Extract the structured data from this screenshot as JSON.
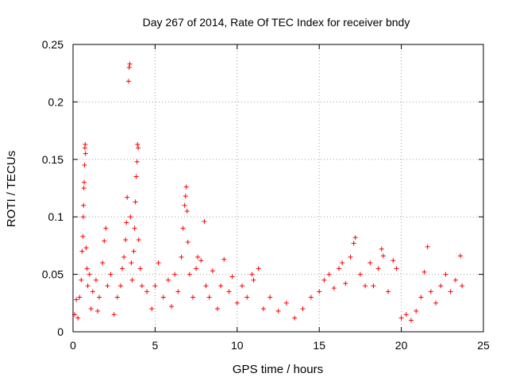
{
  "chart_data": {
    "type": "scatter",
    "title": "Day 267 of 2014, Rate Of TEC Index for receiver bndy",
    "xlabel": "GPS time / hours",
    "ylabel": "ROTI / TECUs",
    "xlim": [
      0,
      25
    ],
    "ylim": [
      0,
      0.25
    ],
    "x_ticks": [
      0,
      5,
      10,
      15,
      20,
      25
    ],
    "x_tick_labels": [
      "0",
      "5",
      "10",
      "15",
      "20",
      "25"
    ],
    "y_ticks": [
      0,
      0.05,
      0.1,
      0.15,
      0.2,
      0.25
    ],
    "y_tick_labels": [
      "0",
      "0.05",
      "0.1",
      "0.15",
      "0.2",
      "0.25"
    ],
    "grid": true,
    "marker": "plus",
    "marker_color": "#ff0000",
    "series": [
      {
        "name": "ROTI",
        "points": [
          [
            0.1,
            0.015
          ],
          [
            0.2,
            0.028
          ],
          [
            0.3,
            0.012
          ],
          [
            0.4,
            0.03
          ],
          [
            0.5,
            0.045
          ],
          [
            0.55,
            0.07
          ],
          [
            0.6,
            0.083
          ],
          [
            0.62,
            0.1
          ],
          [
            0.64,
            0.11
          ],
          [
            0.66,
            0.125
          ],
          [
            0.68,
            0.13
          ],
          [
            0.7,
            0.145
          ],
          [
            0.72,
            0.16
          ],
          [
            0.74,
            0.163
          ],
          [
            0.76,
            0.155
          ],
          [
            0.8,
            0.073
          ],
          [
            0.85,
            0.055
          ],
          [
            0.9,
            0.04
          ],
          [
            1.0,
            0.05
          ],
          [
            1.1,
            0.02
          ],
          [
            1.2,
            0.035
          ],
          [
            1.4,
            0.045
          ],
          [
            1.5,
            0.018
          ],
          [
            1.6,
            0.03
          ],
          [
            1.8,
            0.06
          ],
          [
            1.9,
            0.079
          ],
          [
            2.0,
            0.09
          ],
          [
            2.1,
            0.04
          ],
          [
            2.3,
            0.05
          ],
          [
            2.5,
            0.015
          ],
          [
            2.7,
            0.03
          ],
          [
            2.9,
            0.04
          ],
          [
            3.0,
            0.055
          ],
          [
            3.1,
            0.065
          ],
          [
            3.2,
            0.08
          ],
          [
            3.25,
            0.095
          ],
          [
            3.3,
            0.117
          ],
          [
            3.38,
            0.218
          ],
          [
            3.42,
            0.23
          ],
          [
            3.46,
            0.233
          ],
          [
            3.5,
            0.1
          ],
          [
            3.55,
            0.06
          ],
          [
            3.6,
            0.045
          ],
          [
            3.7,
            0.07
          ],
          [
            3.75,
            0.09
          ],
          [
            3.8,
            0.113
          ],
          [
            3.85,
            0.135
          ],
          [
            3.9,
            0.148
          ],
          [
            3.93,
            0.163
          ],
          [
            3.97,
            0.16
          ],
          [
            4.0,
            0.08
          ],
          [
            4.1,
            0.055
          ],
          [
            4.2,
            0.04
          ],
          [
            4.5,
            0.035
          ],
          [
            4.8,
            0.02
          ],
          [
            5.0,
            0.04
          ],
          [
            5.2,
            0.06
          ],
          [
            5.5,
            0.03
          ],
          [
            5.8,
            0.045
          ],
          [
            6.0,
            0.022
          ],
          [
            6.2,
            0.05
          ],
          [
            6.4,
            0.035
          ],
          [
            6.6,
            0.065
          ],
          [
            6.7,
            0.09
          ],
          [
            6.8,
            0.11
          ],
          [
            6.85,
            0.118
          ],
          [
            6.9,
            0.126
          ],
          [
            6.95,
            0.105
          ],
          [
            7.0,
            0.078
          ],
          [
            7.1,
            0.05
          ],
          [
            7.3,
            0.03
          ],
          [
            7.5,
            0.055
          ],
          [
            7.6,
            0.065
          ],
          [
            7.8,
            0.062
          ],
          [
            8.0,
            0.096
          ],
          [
            8.1,
            0.04
          ],
          [
            8.3,
            0.03
          ],
          [
            8.5,
            0.053
          ],
          [
            8.8,
            0.02
          ],
          [
            9.0,
            0.04
          ],
          [
            9.2,
            0.063
          ],
          [
            9.5,
            0.035
          ],
          [
            9.7,
            0.048
          ],
          [
            10.0,
            0.025
          ],
          [
            10.3,
            0.04
          ],
          [
            10.6,
            0.03
          ],
          [
            10.9,
            0.05
          ],
          [
            11.0,
            0.045
          ],
          [
            11.3,
            0.055
          ],
          [
            11.6,
            0.02
          ],
          [
            12.0,
            0.03
          ],
          [
            12.5,
            0.018
          ],
          [
            13.0,
            0.025
          ],
          [
            13.5,
            0.012
          ],
          [
            14.0,
            0.02
          ],
          [
            14.5,
            0.03
          ],
          [
            15.0,
            0.035
          ],
          [
            15.3,
            0.045
          ],
          [
            15.6,
            0.05
          ],
          [
            15.9,
            0.038
          ],
          [
            16.2,
            0.055
          ],
          [
            16.4,
            0.06
          ],
          [
            16.6,
            0.042
          ],
          [
            16.9,
            0.065
          ],
          [
            17.1,
            0.077
          ],
          [
            17.2,
            0.082
          ],
          [
            17.5,
            0.05
          ],
          [
            17.8,
            0.04
          ],
          [
            18.1,
            0.06
          ],
          [
            18.3,
            0.04
          ],
          [
            18.6,
            0.055
          ],
          [
            18.8,
            0.072
          ],
          [
            18.9,
            0.066
          ],
          [
            19.2,
            0.035
          ],
          [
            19.5,
            0.062
          ],
          [
            19.7,
            0.055
          ],
          [
            20.0,
            0.012
          ],
          [
            20.3,
            0.015
          ],
          [
            20.6,
            0.01
          ],
          [
            20.9,
            0.018
          ],
          [
            21.2,
            0.03
          ],
          [
            21.4,
            0.052
          ],
          [
            21.6,
            0.074
          ],
          [
            21.8,
            0.035
          ],
          [
            22.1,
            0.025
          ],
          [
            22.4,
            0.04
          ],
          [
            22.7,
            0.05
          ],
          [
            23.0,
            0.035
          ],
          [
            23.3,
            0.045
          ],
          [
            23.6,
            0.066
          ],
          [
            23.7,
            0.04
          ]
        ]
      }
    ]
  }
}
